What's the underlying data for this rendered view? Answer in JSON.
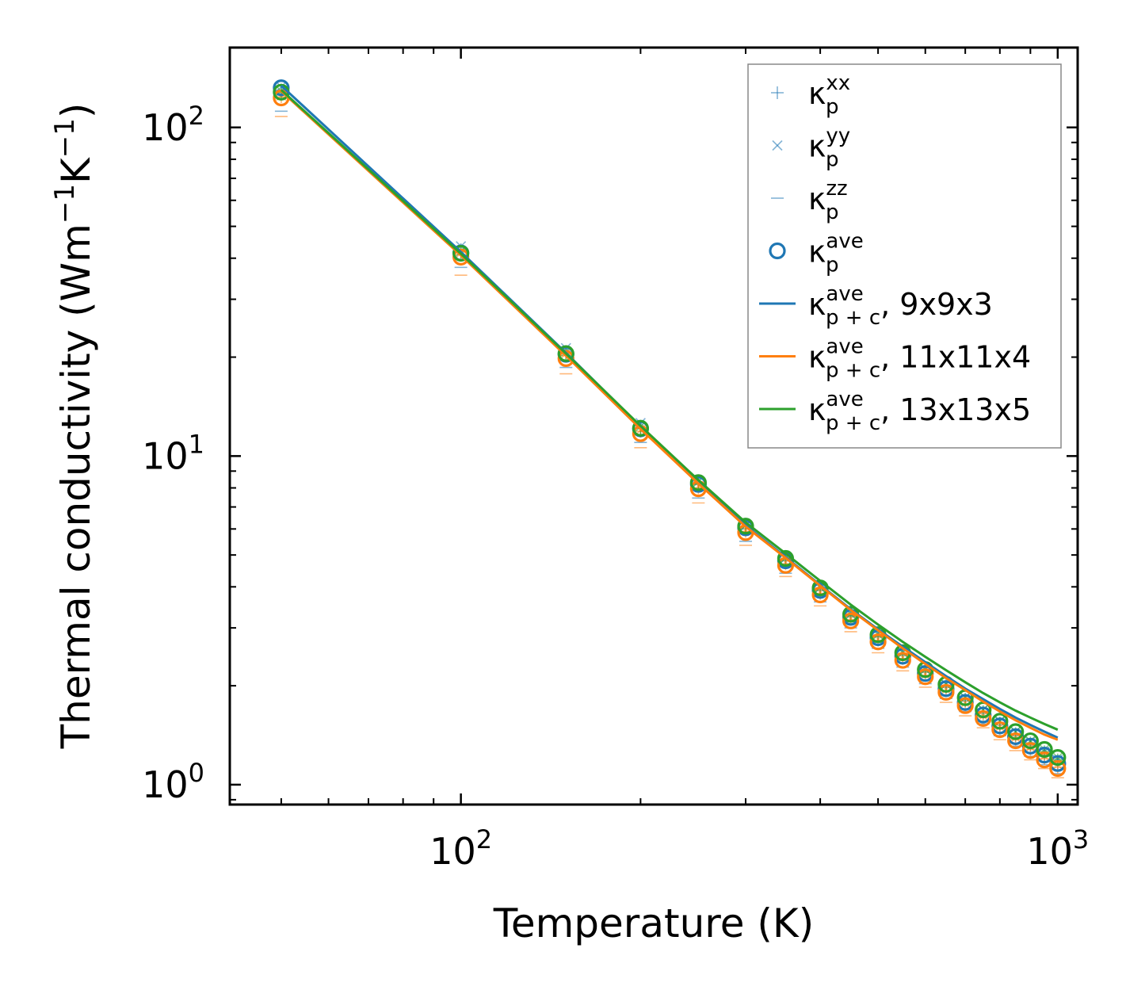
{
  "chart_data": {
    "type": "scatter",
    "title": "",
    "xlabel": "Temperature (K)",
    "ylabel": {
      "main": "Thermal conductivity (Wm",
      "sup1": "−1",
      "mid": "K",
      "sup2": "−1",
      "end": ")"
    },
    "xscale": "log",
    "yscale": "log",
    "xlim": [
      41,
      1080
    ],
    "ylim": [
      0.87,
      175
    ],
    "xticks": [
      {
        "base": "10",
        "exp": "2"
      },
      {
        "base": "10",
        "exp": "3"
      }
    ],
    "yticks": [
      {
        "base": "10",
        "exp": "0"
      },
      {
        "base": "10",
        "exp": "1"
      },
      {
        "base": "10",
        "exp": "2"
      }
    ],
    "temperatures": [
      50,
      100,
      150,
      200,
      250,
      300,
      350,
      400,
      450,
      500,
      550,
      600,
      650,
      700,
      750,
      800,
      850,
      900,
      950,
      1000
    ],
    "colors": {
      "blue": "#1f77b4",
      "orange": "#ff7f0e",
      "green": "#2ca02c"
    },
    "series": [
      {
        "name": "κp xx, 9x9x3",
        "color": "#1f77b4",
        "marker": "plus",
        "values": [
          130,
          42.5,
          20.8,
          12.2,
          8.2,
          6.0,
          4.8,
          3.9,
          3.25,
          2.82,
          2.48,
          2.2,
          1.98,
          1.8,
          1.65,
          1.52,
          1.41,
          1.32,
          1.23,
          1.16
        ]
      },
      {
        "name": "κp yy, 9x9x3",
        "color": "#1f77b4",
        "marker": "x",
        "values": [
          133,
          43.5,
          21.3,
          12.6,
          8.4,
          6.15,
          4.9,
          3.98,
          3.32,
          2.88,
          2.53,
          2.25,
          2.02,
          1.84,
          1.69,
          1.56,
          1.45,
          1.35,
          1.26,
          1.19
        ]
      },
      {
        "name": "κp zz, 9x9x3",
        "color": "#1f77b4",
        "marker": "dash",
        "values": [
          112,
          37.5,
          18.6,
          11.0,
          7.45,
          5.5,
          4.4,
          3.6,
          3.0,
          2.6,
          2.28,
          2.03,
          1.83,
          1.67,
          1.53,
          1.41,
          1.31,
          1.22,
          1.15,
          1.08
        ]
      },
      {
        "name": "κp ave, 9x9x3",
        "color": "#1f77b4",
        "marker": "circle",
        "values": [
          132,
          41.5,
          20.4,
          12.1,
          8.2,
          6.05,
          4.8,
          3.9,
          3.23,
          2.8,
          2.46,
          2.18,
          1.96,
          1.78,
          1.63,
          1.51,
          1.4,
          1.31,
          1.23,
          1.16
        ]
      },
      {
        "name": "κp xx, 11x11x4",
        "color": "#ff7f0e",
        "marker": "plus",
        "values": [
          124,
          41.0,
          20.2,
          11.9,
          8.0,
          5.9,
          4.7,
          3.82,
          3.18,
          2.75,
          2.42,
          2.15,
          1.93,
          1.75,
          1.6,
          1.48,
          1.37,
          1.28,
          1.2,
          1.13
        ]
      },
      {
        "name": "κp yy, 11x11x4",
        "color": "#ff7f0e",
        "marker": "x",
        "values": [
          125,
          41.5,
          20.5,
          12.0,
          8.1,
          5.95,
          4.75,
          3.85,
          3.2,
          2.77,
          2.44,
          2.17,
          1.95,
          1.77,
          1.62,
          1.5,
          1.39,
          1.3,
          1.22,
          1.15
        ]
      },
      {
        "name": "κp zz, 11x11x4",
        "color": "#ff7f0e",
        "marker": "dash",
        "values": [
          108,
          35.5,
          17.8,
          10.6,
          7.2,
          5.35,
          4.3,
          3.5,
          2.92,
          2.52,
          2.22,
          1.98,
          1.78,
          1.62,
          1.49,
          1.37,
          1.27,
          1.19,
          1.12,
          1.05
        ]
      },
      {
        "name": "κp ave, 11x11x4",
        "color": "#ff7f0e",
        "marker": "circle",
        "values": [
          123,
          40.3,
          19.8,
          11.7,
          7.95,
          5.85,
          4.65,
          3.78,
          3.15,
          2.72,
          2.39,
          2.13,
          1.91,
          1.74,
          1.59,
          1.47,
          1.36,
          1.27,
          1.19,
          1.12
        ]
      },
      {
        "name": "κp xx, 13x13x5",
        "color": "#2ca02c",
        "marker": "plus",
        "values": [
          128,
          41.8,
          20.6,
          12.15,
          8.25,
          6.1,
          4.85,
          3.95,
          3.28,
          2.84,
          2.5,
          2.22,
          2.0,
          1.82,
          1.67,
          1.54,
          1.43,
          1.34,
          1.26,
          1.19
        ]
      },
      {
        "name": "κp yy, 13x13x5",
        "color": "#2ca02c",
        "marker": "x",
        "values": [
          129,
          42.0,
          20.8,
          12.3,
          8.35,
          6.15,
          4.9,
          3.98,
          3.3,
          2.86,
          2.52,
          2.24,
          2.02,
          1.84,
          1.69,
          1.56,
          1.45,
          1.36,
          1.28,
          1.21
        ]
      },
      {
        "name": "κp ave, 13x13x5",
        "color": "#2ca02c",
        "marker": "circle",
        "values": [
          128,
          41.4,
          20.5,
          12.15,
          8.3,
          6.12,
          4.88,
          3.97,
          3.3,
          2.86,
          2.52,
          2.24,
          2.02,
          1.84,
          1.69,
          1.56,
          1.45,
          1.36,
          1.28,
          1.21
        ]
      },
      {
        "name": "κp+c ave, 9x9x3",
        "color": "#1f77b4",
        "marker": "line",
        "values": [
          134,
          41.8,
          20.6,
          12.3,
          8.35,
          6.15,
          4.93,
          4.05,
          3.42,
          2.97,
          2.63,
          2.36,
          2.14,
          1.96,
          1.82,
          1.7,
          1.6,
          1.52,
          1.45,
          1.39
        ]
      },
      {
        "name": "κp+c ave, 11x11x4",
        "color": "#ff7f0e",
        "marker": "line",
        "values": [
          129,
          40.8,
          20.2,
          12.1,
          8.25,
          6.1,
          4.9,
          4.03,
          3.4,
          2.95,
          2.6,
          2.33,
          2.11,
          1.94,
          1.79,
          1.67,
          1.57,
          1.49,
          1.42,
          1.37
        ]
      },
      {
        "name": "κp+c ave, 13x13x5",
        "color": "#2ca02c",
        "marker": "line",
        "values": [
          130,
          41.3,
          20.5,
          12.35,
          8.45,
          6.28,
          5.05,
          4.17,
          3.53,
          3.07,
          2.72,
          2.45,
          2.23,
          2.05,
          1.9,
          1.78,
          1.68,
          1.6,
          1.53,
          1.47
        ]
      }
    ],
    "legend": {
      "placement": "top-right",
      "entries": [
        {
          "marker": "plus",
          "color": "#1f77b4",
          "kappa": "κ",
          "sub": "p",
          "sup": "xx",
          "suffix": ""
        },
        {
          "marker": "x",
          "color": "#1f77b4",
          "kappa": "κ",
          "sub": "p",
          "sup": "yy",
          "suffix": ""
        },
        {
          "marker": "dash",
          "color": "#1f77b4",
          "kappa": "κ",
          "sub": "p",
          "sup": "zz",
          "suffix": ""
        },
        {
          "marker": "circle",
          "color": "#1f77b4",
          "kappa": "κ",
          "sub": "p",
          "sup": "ave",
          "suffix": ""
        },
        {
          "marker": "line",
          "color": "#1f77b4",
          "kappa": "κ",
          "sub": "p + c",
          "sup": "ave",
          "suffix": ", 9x9x3"
        },
        {
          "marker": "line",
          "color": "#ff7f0e",
          "kappa": "κ",
          "sub": "p + c",
          "sup": "ave",
          "suffix": ", 11x11x4"
        },
        {
          "marker": "line",
          "color": "#2ca02c",
          "kappa": "κ",
          "sub": "p + c",
          "sup": "ave",
          "suffix": ", 13x13x5"
        }
      ]
    }
  }
}
